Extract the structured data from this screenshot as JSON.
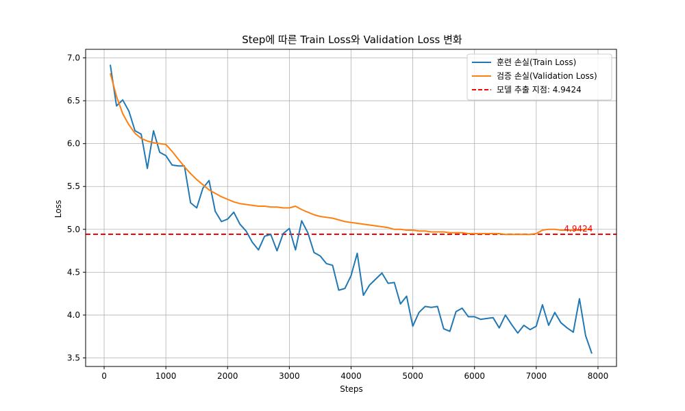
{
  "chart_data": {
    "type": "line",
    "title": "Step에 따른 Train Loss와 Validation Loss 변화",
    "xlabel": "Steps",
    "ylabel": "Loss",
    "xlim": [
      -300,
      8300
    ],
    "ylim": [
      3.4,
      7.1
    ],
    "xticks": [
      0,
      1000,
      2000,
      3000,
      4000,
      5000,
      6000,
      7000,
      8000
    ],
    "yticks": [
      3.5,
      4.0,
      4.5,
      5.0,
      5.5,
      6.0,
      6.5,
      7.0
    ],
    "xtick_labels": [
      "0",
      "1000",
      "2000",
      "3000",
      "4000",
      "5000",
      "6000",
      "7000",
      "8000"
    ],
    "ytick_labels": [
      "3.5",
      "4.0",
      "4.5",
      "5.0",
      "5.5",
      "6.0",
      "6.5",
      "7.0"
    ],
    "grid": true,
    "legend_position": "top-right",
    "series": [
      {
        "name": "훈련 손실(Train Loss)",
        "color": "#1f77b4",
        "x": [
          100,
          200,
          300,
          400,
          500,
          600,
          700,
          800,
          900,
          1000,
          1100,
          1200,
          1300,
          1400,
          1500,
          1600,
          1700,
          1800,
          1900,
          2000,
          2100,
          2200,
          2300,
          2400,
          2500,
          2600,
          2700,
          2800,
          2900,
          3000,
          3100,
          3200,
          3300,
          3400,
          3500,
          3600,
          3700,
          3800,
          3900,
          4000,
          4100,
          4200,
          4300,
          4400,
          4500,
          4600,
          4700,
          4800,
          4900,
          5000,
          5100,
          5200,
          5300,
          5400,
          5500,
          5600,
          5700,
          5800,
          5900,
          6000,
          6100,
          6200,
          6300,
          6400,
          6500,
          6600,
          6700,
          6800,
          6900,
          7000,
          7100,
          7200,
          7300,
          7400,
          7500,
          7600,
          7700,
          7800,
          7900
        ],
        "values": [
          6.92,
          6.44,
          6.51,
          6.38,
          6.15,
          6.11,
          5.71,
          6.15,
          5.9,
          5.86,
          5.75,
          5.74,
          5.74,
          5.31,
          5.25,
          5.48,
          5.57,
          5.21,
          5.09,
          5.12,
          5.2,
          5.06,
          4.98,
          4.85,
          4.76,
          4.92,
          4.94,
          4.75,
          4.95,
          5.01,
          4.76,
          5.1,
          4.96,
          4.73,
          4.69,
          4.6,
          4.58,
          4.29,
          4.31,
          4.46,
          4.72,
          4.23,
          4.35,
          4.42,
          4.49,
          4.37,
          4.38,
          4.13,
          4.22,
          3.87,
          4.03,
          4.1,
          4.09,
          4.1,
          3.84,
          3.81,
          4.04,
          4.08,
          3.98,
          3.98,
          3.95,
          3.96,
          3.97,
          3.85,
          4.0,
          3.89,
          3.79,
          3.88,
          3.83,
          3.87,
          4.12,
          3.88,
          4.03,
          3.91,
          3.85,
          3.8,
          4.19,
          3.76,
          3.55
        ]
      },
      {
        "name": "검증 손실(Validation Loss)",
        "color": "#ff7f0e",
        "x": [
          100,
          200,
          300,
          400,
          500,
          600,
          700,
          800,
          900,
          1000,
          1100,
          1200,
          1300,
          1400,
          1500,
          1600,
          1700,
          1800,
          1900,
          2000,
          2100,
          2200,
          2300,
          2400,
          2500,
          2600,
          2700,
          2800,
          2900,
          3000,
          3100,
          3200,
          3300,
          3400,
          3500,
          3600,
          3700,
          3800,
          3900,
          4000,
          4100,
          4200,
          4300,
          4400,
          4500,
          4600,
          4700,
          4800,
          4900,
          5000,
          5100,
          5200,
          5300,
          5400,
          5500,
          5600,
          5700,
          5800,
          5900,
          6000,
          6100,
          6200,
          6300,
          6400,
          6500,
          6600,
          6700,
          6800,
          6900,
          7000,
          7100,
          7200,
          7300,
          7400,
          7500,
          7600,
          7700,
          7800,
          7900
        ],
        "values": [
          6.82,
          6.55,
          6.35,
          6.22,
          6.12,
          6.06,
          6.03,
          6.01,
          6.0,
          5.99,
          5.91,
          5.82,
          5.73,
          5.65,
          5.58,
          5.52,
          5.46,
          5.42,
          5.38,
          5.35,
          5.32,
          5.3,
          5.29,
          5.28,
          5.27,
          5.27,
          5.26,
          5.26,
          5.25,
          5.25,
          5.27,
          5.23,
          5.2,
          5.17,
          5.15,
          5.14,
          5.13,
          5.11,
          5.09,
          5.08,
          5.07,
          5.06,
          5.05,
          5.04,
          5.03,
          5.02,
          5.0,
          5.0,
          4.99,
          4.99,
          4.98,
          4.98,
          4.97,
          4.97,
          4.97,
          4.96,
          4.96,
          4.96,
          4.95,
          4.95,
          4.95,
          4.95,
          4.95,
          4.95,
          4.94,
          4.94,
          4.94,
          4.94,
          4.94,
          4.95,
          4.99,
          5.0,
          5.0,
          4.99,
          4.99,
          4.99,
          4.99,
          5.0,
          5.0
        ]
      }
    ],
    "hline": {
      "name": "모델 추출 지점: 4.9424",
      "value": 4.9424,
      "color": "#ff0000",
      "annotation": "4.9424",
      "annotation_x": 7450
    }
  }
}
